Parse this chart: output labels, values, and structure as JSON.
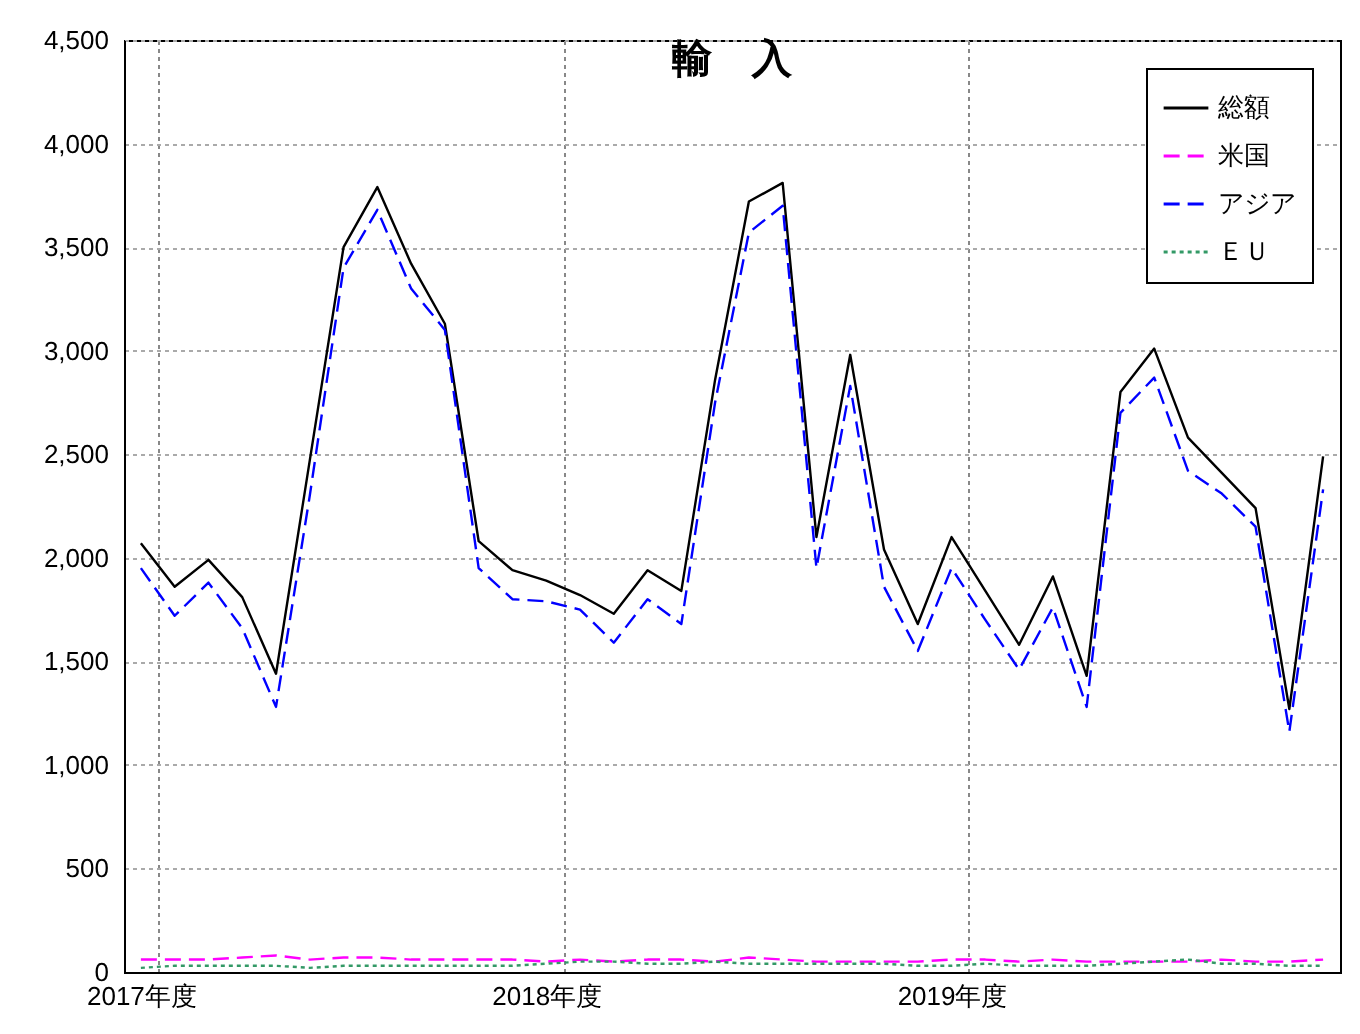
{
  "chart_data": {
    "type": "line",
    "title": "輸　入",
    "categories": [
      "2017年度",
      null,
      null,
      null,
      null,
      null,
      null,
      null,
      null,
      null,
      null,
      null,
      "2018年度",
      null,
      null,
      null,
      null,
      null,
      null,
      null,
      null,
      null,
      null,
      null,
      "2019年度",
      null,
      null,
      null,
      null,
      null,
      null,
      null,
      null,
      null,
      null,
      null
    ],
    "series": [
      {
        "name": "総額",
        "color": "#000000",
        "line_style": "solid",
        "values": [
          2070,
          1860,
          1990,
          1810,
          1440,
          2470,
          3500,
          3790,
          3420,
          3130,
          2080,
          1940,
          1890,
          1820,
          1730,
          1940,
          1840,
          2860,
          3720,
          3810,
          2100,
          2980,
          2040,
          1680,
          2100,
          1840,
          1580,
          1910,
          1430,
          2800,
          3010,
          2580,
          2410,
          2240,
          1270,
          2490
        ]
      },
      {
        "name": "米国",
        "color": "#ff00ff",
        "line_style": "dashed",
        "values": [
          60,
          60,
          60,
          70,
          80,
          60,
          70,
          70,
          60,
          60,
          60,
          60,
          50,
          60,
          50,
          60,
          60,
          50,
          70,
          60,
          50,
          50,
          50,
          50,
          60,
          60,
          50,
          60,
          50,
          50,
          50,
          50,
          60,
          50,
          50,
          60
        ]
      },
      {
        "name": "アジア",
        "color": "#0000ff",
        "line_style": "dashed",
        "values": [
          1950,
          1720,
          1880,
          1660,
          1280,
          2300,
          3400,
          3680,
          3300,
          3100,
          1950,
          1800,
          1790,
          1750,
          1590,
          1800,
          1680,
          2750,
          3570,
          3700,
          1950,
          2830,
          1860,
          1550,
          1950,
          1700,
          1460,
          1760,
          1280,
          2700,
          2870,
          2420,
          2310,
          2150,
          1160,
          2330
        ]
      },
      {
        "name": "ＥＵ",
        "color": "#339966",
        "line_style": "dotted",
        "values": [
          20,
          30,
          30,
          30,
          30,
          20,
          30,
          30,
          30,
          30,
          30,
          30,
          40,
          50,
          50,
          40,
          40,
          50,
          40,
          40,
          40,
          40,
          40,
          30,
          30,
          40,
          30,
          30,
          30,
          40,
          50,
          60,
          40,
          40,
          30,
          30
        ]
      }
    ],
    "ylim": [
      0,
      4500
    ],
    "yticks": [
      0,
      500,
      {
        "value": 1000,
        "label": "1,000"
      },
      {
        "value": 1500,
        "label": "1,500"
      },
      {
        "value": 2000,
        "label": "2,000"
      },
      {
        "value": 2500,
        "label": "2,500"
      },
      {
        "value": 3000,
        "label": "3,000"
      },
      {
        "value": 3500,
        "label": "3,500"
      },
      {
        "value": 4000,
        "label": "4,000"
      },
      {
        "value": 4500,
        "label": "4,500"
      }
    ],
    "grid": true,
    "legend": "top right"
  }
}
